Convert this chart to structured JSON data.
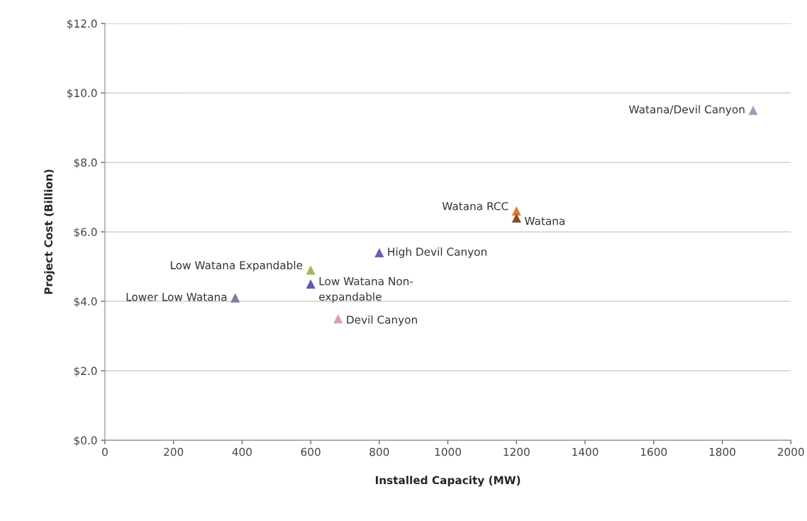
{
  "chart_data": {
    "type": "scatter",
    "xlabel": "Installed Capacity (MW)",
    "ylabel": "Project Cost (Billion)",
    "xlim": [
      0,
      2000
    ],
    "xticks": [
      0,
      200,
      400,
      600,
      800,
      1000,
      1200,
      1400,
      1600,
      1800,
      2000
    ],
    "ylim": [
      0,
      12
    ],
    "yticks": [
      {
        "value": 0,
        "label": "$0.0"
      },
      {
        "value": 2,
        "label": "$2.0"
      },
      {
        "value": 4,
        "label": "$4.0"
      },
      {
        "value": 6,
        "label": "$6.0"
      },
      {
        "value": 8,
        "label": "$8.0"
      },
      {
        "value": 10,
        "label": "$10.0"
      },
      {
        "value": 12,
        "label": "$12.0"
      }
    ],
    "grid": "y",
    "legend": false,
    "marker": "triangle",
    "series": [
      {
        "name": "Lower Low Watana",
        "color": "#7a7ca0",
        "x": [
          380
        ],
        "values": [
          4.1
        ]
      },
      {
        "name": "Low Watana Expandable",
        "color": "#9bbb59",
        "x": [
          600
        ],
        "values": [
          4.9
        ]
      },
      {
        "name": "Low Watana Non-\nexpandable",
        "color": "#5b5bb0",
        "x": [
          600
        ],
        "values": [
          4.5
        ]
      },
      {
        "name": "Devil Canyon",
        "color": "#d9a0a8",
        "x": [
          680
        ],
        "values": [
          3.5
        ]
      },
      {
        "name": "High Devil Canyon",
        "color": "#6a5fb0",
        "x": [
          800
        ],
        "values": [
          5.4
        ]
      },
      {
        "name": "Watana RCC",
        "color": "#e07b30",
        "x": [
          1200
        ],
        "values": [
          6.6
        ]
      },
      {
        "name": "Watana",
        "color": "#8b4a2a",
        "x": [
          1200
        ],
        "values": [
          6.4
        ]
      },
      {
        "name": "Watana/Devil Canyon",
        "color": "#a0a0c0",
        "x": [
          1890
        ],
        "values": [
          9.5
        ]
      }
    ]
  }
}
